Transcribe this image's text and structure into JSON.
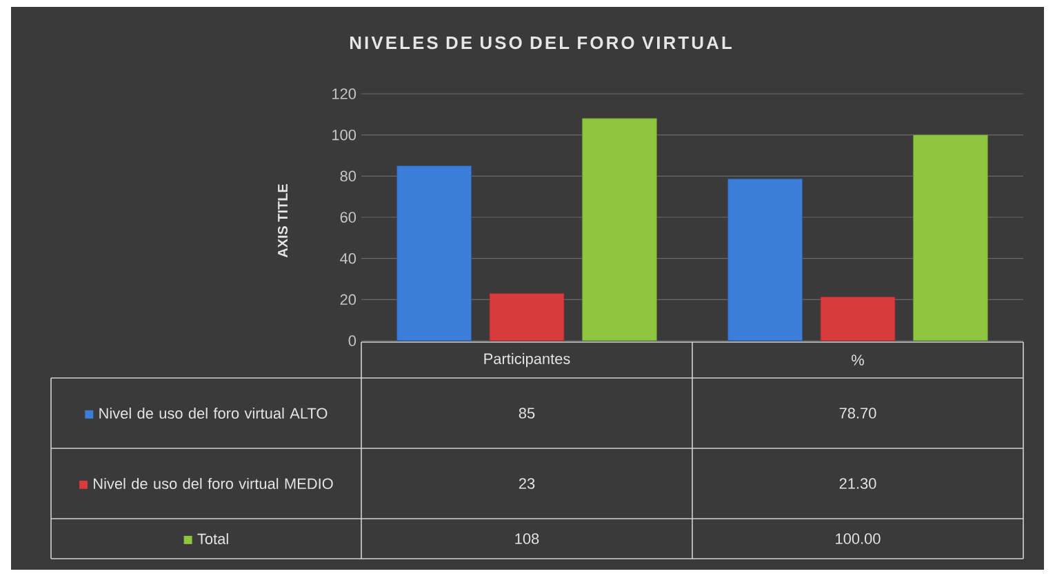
{
  "chart_data": {
    "type": "bar",
    "title": "NIVELES DE USO DEL FORO VIRTUAL",
    "ylabel": "AXIS TITLE",
    "categories": [
      "Participantes",
      "%"
    ],
    "series": [
      {
        "name": "Nivel de uso del foro virtual ALTO",
        "color": "#3b7dd8",
        "values": [
          85,
          78.7
        ],
        "value_labels": [
          "85",
          "78.70"
        ]
      },
      {
        "name": "Nivel de uso del foro virtual MEDIO",
        "color": "#d83b3b",
        "values": [
          23,
          21.3
        ],
        "value_labels": [
          "23",
          "21.30"
        ]
      },
      {
        "name": "Total",
        "color": "#8fc640",
        "values": [
          108,
          100
        ],
        "value_labels": [
          "108",
          "100.00"
        ]
      }
    ],
    "ylim": [
      0,
      120
    ],
    "yticks": [
      0,
      20,
      40,
      60,
      80,
      100,
      120
    ],
    "grid": "y",
    "legend": "bottom"
  }
}
